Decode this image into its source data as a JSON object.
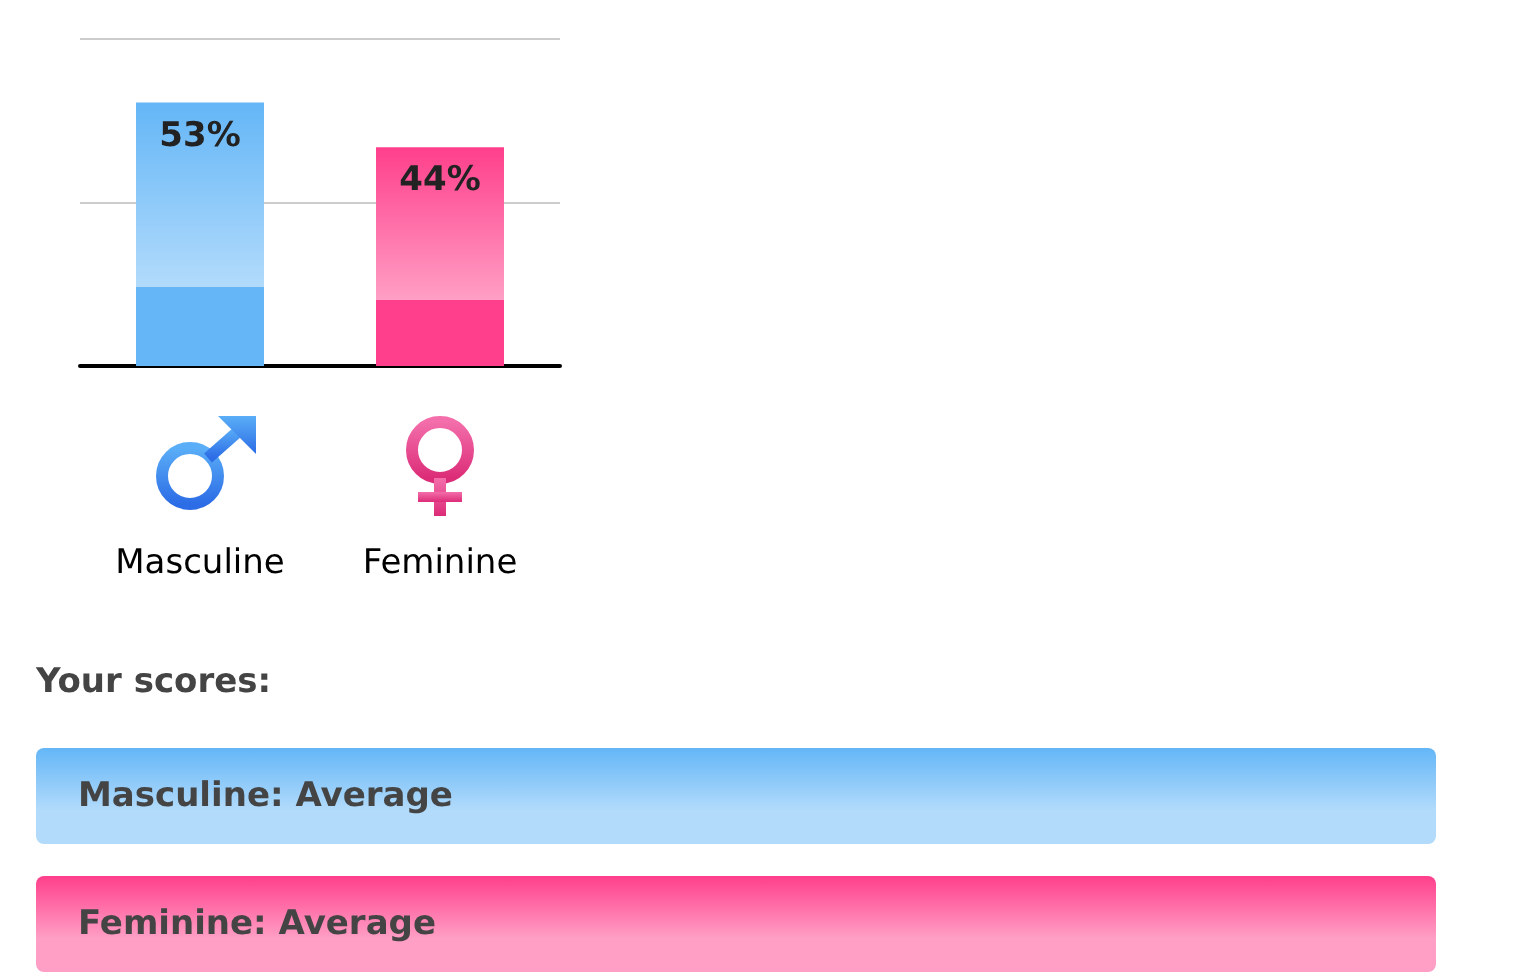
{
  "chart_data": {
    "type": "bar",
    "categories": [
      "Masculine",
      "Feminine"
    ],
    "values": [
      53,
      44
    ],
    "colors": [
      "#64b6f7",
      "#ff3f8b"
    ],
    "value_labels": [
      "53%",
      "44%"
    ],
    "ylim": [
      0,
      66
    ],
    "yticks": [
      {
        "value": 0,
        "label": null
      },
      {
        "value": 33,
        "label": null
      },
      {
        "value": 66,
        "label": null
      }
    ],
    "grid": "y",
    "tick_labels": "x",
    "annotations": [
      "Your scores:",
      "Masculine: Average",
      "Feminine: Average"
    ]
  }
}
